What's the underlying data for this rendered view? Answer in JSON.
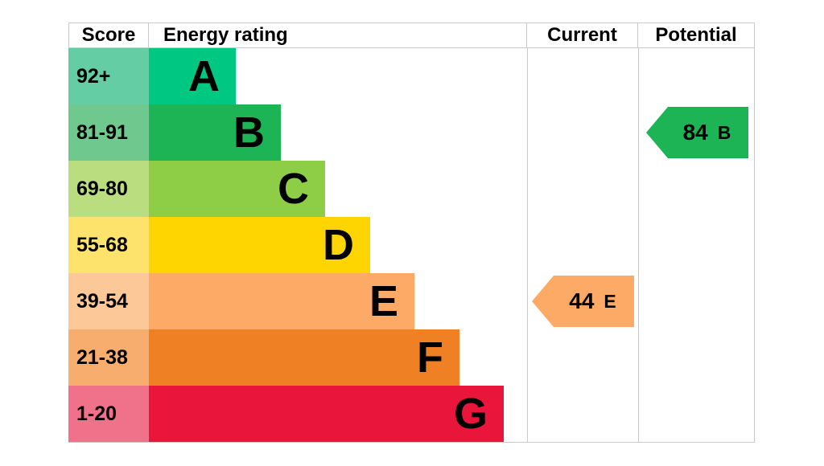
{
  "header": {
    "score": "Score",
    "rating": "Energy rating",
    "current": "Current",
    "potential": "Potential"
  },
  "bands": [
    {
      "letter": "A",
      "range": "92+",
      "bar_color": "#00c781",
      "score_cell_color": "#65cda3"
    },
    {
      "letter": "B",
      "range": "81-91",
      "bar_color": "#1cb454",
      "score_cell_color": "#6fc98e"
    },
    {
      "letter": "C",
      "range": "69-80",
      "bar_color": "#8dce46",
      "score_cell_color": "#bade7f"
    },
    {
      "letter": "D",
      "range": "55-68",
      "bar_color": "#fed500",
      "score_cell_color": "#fde36b"
    },
    {
      "letter": "E",
      "range": "39-54",
      "bar_color": "#fcaa65",
      "score_cell_color": "#fcc897"
    },
    {
      "letter": "F",
      "range": "21-38",
      "bar_color": "#ef8023",
      "score_cell_color": "#f6ad6d"
    },
    {
      "letter": "G",
      "range": "1-20",
      "bar_color": "#e9153b",
      "score_cell_color": "#f0718a"
    }
  ],
  "current": {
    "score": "44",
    "band": "E",
    "row_index": 4,
    "arrow_color": "#fcaa65"
  },
  "potential": {
    "score": "84",
    "band": "B",
    "row_index": 1,
    "arrow_color": "#1cb454"
  },
  "border_color": "#c9c9c9",
  "chart_data": {
    "type": "bar",
    "title": "Energy rating",
    "categories": [
      "A",
      "B",
      "C",
      "D",
      "E",
      "F",
      "G"
    ],
    "score_ranges": [
      "92+",
      "81-91",
      "69-80",
      "55-68",
      "39-54",
      "21-38",
      "1-20"
    ],
    "band_colors": [
      "#00c781",
      "#1cb454",
      "#8dce46",
      "#fed500",
      "#fcaa65",
      "#ef8023",
      "#e9153b"
    ],
    "bar_lengths_relative": [
      1,
      2,
      3,
      4,
      5,
      6,
      7
    ],
    "column_headers": [
      "Score",
      "Energy rating",
      "Current",
      "Potential"
    ],
    "current": {
      "value": 44,
      "band": "E"
    },
    "potential": {
      "value": 84,
      "band": "B"
    },
    "legend_position": "none",
    "grid": false
  }
}
